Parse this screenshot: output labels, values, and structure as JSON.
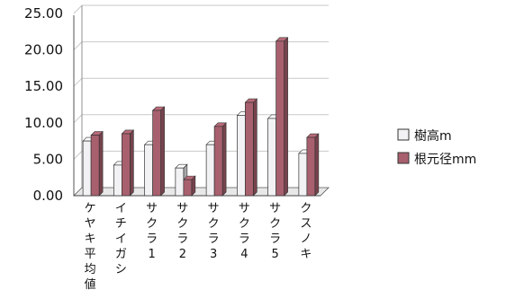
{
  "chart_data": {
    "type": "bar",
    "title": "",
    "xlabel": "",
    "ylabel": "",
    "ylim": [
      0,
      25
    ],
    "yticks": [
      "0.00",
      "5.00",
      "10.00",
      "15.00",
      "20.00",
      "25.00"
    ],
    "grid": true,
    "legend_position": "right",
    "categories": [
      "ケヤキ平均値",
      "イチイガシ",
      "サクラ1",
      "サクラ2",
      "サクラ3",
      "サクラ4",
      "サクラ5",
      "クスノキ"
    ],
    "series": [
      {
        "name": "樹高m",
        "color": "#f2f2f5",
        "values": [
          7.5,
          4.2,
          7.0,
          3.8,
          7.0,
          11.0,
          10.6,
          5.8
        ]
      },
      {
        "name": "根元径mm",
        "color": "#a8606e",
        "values": [
          8.3,
          8.5,
          11.7,
          2.2,
          9.5,
          12.8,
          21.2,
          8.0
        ]
      }
    ]
  }
}
